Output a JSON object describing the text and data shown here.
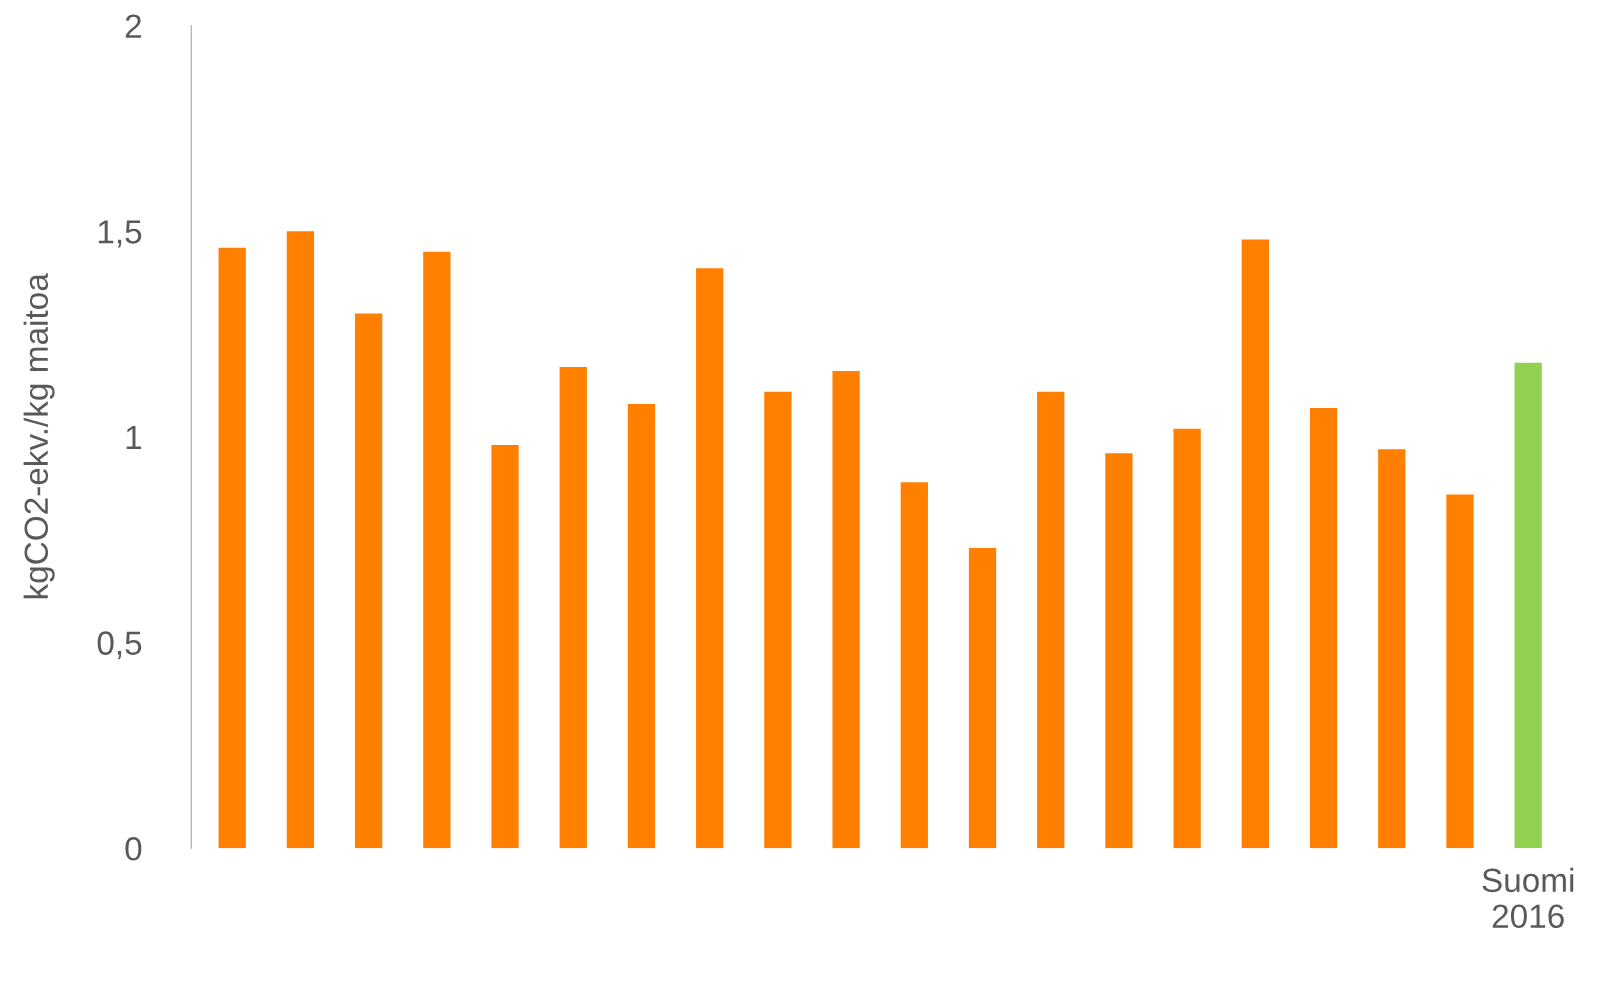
{
  "chart_data": {
    "type": "bar",
    "ylabel": "kgCO2-ekv./kg maitoa",
    "categories": [
      null,
      null,
      null,
      null,
      null,
      null,
      null,
      null,
      null,
      null,
      null,
      null,
      null,
      null,
      null,
      null,
      null,
      null,
      null,
      "Suomi\n2016"
    ],
    "values": [
      1.46,
      1.5,
      1.3,
      1.45,
      0.98,
      1.17,
      1.08,
      1.41,
      1.11,
      1.16,
      0.89,
      0.73,
      1.11,
      0.96,
      1.02,
      1.48,
      1.07,
      0.97,
      0.86,
      1.18
    ],
    "colors": [
      "#ff8000",
      "#ff8000",
      "#ff8000",
      "#ff8000",
      "#ff8000",
      "#ff8000",
      "#ff8000",
      "#ff8000",
      "#ff8000",
      "#ff8000",
      "#ff8000",
      "#ff8000",
      "#ff8000",
      "#ff8000",
      "#ff8000",
      "#ff8000",
      "#ff8000",
      "#ff8000",
      "#ff8000",
      "#92d050"
    ],
    "ylim": [
      0,
      2
    ],
    "yticks": [
      0,
      {
        "value": 0.5,
        "label": "0,5"
      },
      1,
      {
        "value": 1.5,
        "label": "1,5"
      },
      2
    ],
    "grid": false,
    "legend": false
  }
}
